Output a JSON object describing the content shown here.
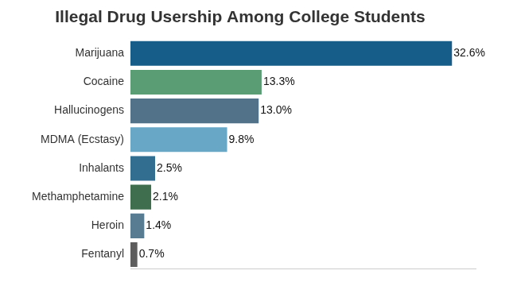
{
  "chart_data": {
    "type": "bar",
    "orientation": "horizontal",
    "title": "Illegal Drug Usership Among College Students",
    "categories": [
      "Marijuana",
      "Cocaine",
      "Hallucinogens",
      "MDMA (Ecstasy)",
      "Inhalants",
      "Methamphetamine",
      "Heroin",
      "Fentanyl"
    ],
    "values": [
      32.6,
      13.3,
      13.0,
      9.8,
      2.5,
      2.1,
      1.4,
      0.7
    ],
    "value_labels": [
      "32.6%",
      "13.3%",
      "13.0%",
      "9.8%",
      "2.5%",
      "2.1%",
      "1.4%",
      "0.7%"
    ],
    "colors": [
      "#165e89",
      "#5a9d74",
      "#52728a",
      "#69a7c7",
      "#326e8f",
      "#3f6e4f",
      "#587c92",
      "#5d5d5d"
    ],
    "xlim": [
      0,
      35
    ],
    "grid": false,
    "data_labels": true,
    "tick_labels": "y"
  }
}
